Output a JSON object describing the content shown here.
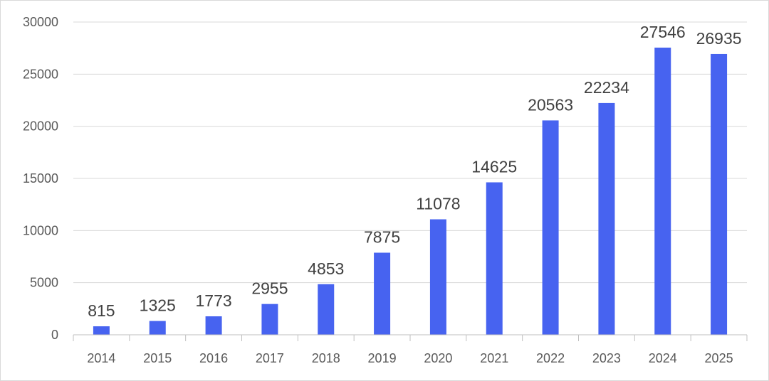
{
  "chart_data": {
    "type": "bar",
    "title": "",
    "xlabel": "",
    "ylabel": "",
    "categories": [
      "2014",
      "2015",
      "2016",
      "2017",
      "2018",
      "2019",
      "2020",
      "2021",
      "2022",
      "2023",
      "2024",
      "2025"
    ],
    "values": [
      815,
      1325,
      1773,
      2955,
      4853,
      7875,
      11078,
      14625,
      20563,
      22234,
      27546,
      26935
    ],
    "data_labels": [
      "815",
      "1325",
      "1773",
      "2955",
      "4853",
      "7875",
      "11078",
      "14625",
      "20563",
      "22234",
      "27546",
      "26935"
    ],
    "ylim": [
      0,
      30000
    ],
    "yticks": [
      "0",
      "5000",
      "10000",
      "15000",
      "20000",
      "25000",
      "30000"
    ],
    "grid": true,
    "legend": "none",
    "bar_color": "#4763f0"
  }
}
